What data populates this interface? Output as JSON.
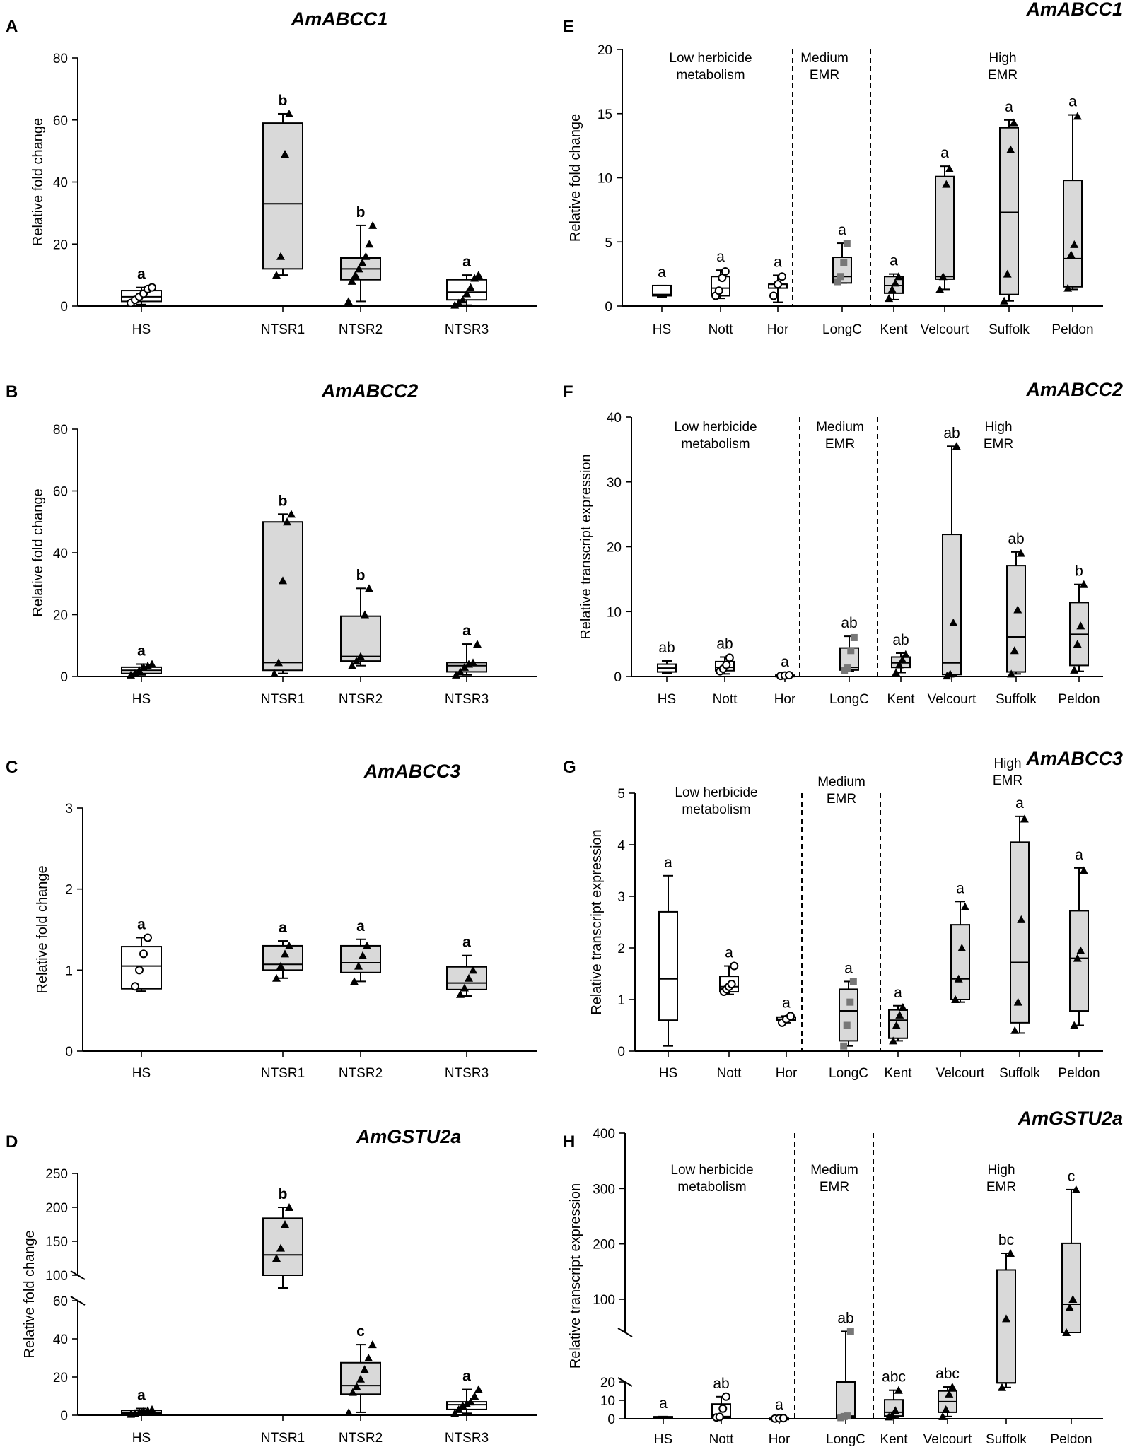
{
  "chart_data": [
    {
      "type": "box",
      "panel_letter": "A",
      "title": "AmABCC1",
      "ylabel": "Relative fold change",
      "ylim": [
        0,
        80
      ],
      "yticks": [
        "0",
        "20",
        "40",
        "60",
        "80"
      ],
      "categories": [
        "HS",
        "NTSR1",
        "NTSR2",
        "NTSR3"
      ],
      "boxes": [
        {
          "min": 0.5,
          "q1": 1.5,
          "median": 3,
          "q3": 5,
          "max": 6,
          "fill": "#ffffff",
          "marker": "circle",
          "points": [
            1,
            2,
            3,
            4,
            5.5,
            6
          ],
          "letter": "a"
        },
        {
          "min": 10,
          "q1": 12,
          "median": 33,
          "q3": 59,
          "max": 62,
          "fill": "#d9d9d9",
          "marker": "triangle",
          "points": [
            10,
            16,
            49,
            62
          ],
          "letter": "b"
        },
        {
          "min": 1.5,
          "q1": 8.5,
          "median": 12,
          "q3": 15.5,
          "max": 26,
          "fill": "#d9d9d9",
          "marker": "triangle",
          "points": [
            1.5,
            8,
            10,
            12,
            14,
            16,
            20,
            26
          ],
          "letter": "b"
        },
        {
          "min": 0.3,
          "q1": 2,
          "median": 4.5,
          "q3": 8.5,
          "max": 10,
          "fill": "#ffffff",
          "marker": "triangle",
          "points": [
            0.3,
            1,
            2,
            4,
            6,
            9,
            10
          ],
          "letter": "a"
        }
      ]
    },
    {
      "type": "box",
      "panel_letter": "B",
      "title": "AmABCC2",
      "ylabel": "Relative fold change",
      "ylim": [
        0,
        80
      ],
      "yticks": [
        "0",
        "20",
        "40",
        "60",
        "80"
      ],
      "categories": [
        "HS",
        "NTSR1",
        "NTSR2",
        "NTSR3"
      ],
      "boxes": [
        {
          "min": 0.5,
          "q1": 1,
          "median": 2,
          "q3": 3,
          "max": 4,
          "fill": "#ffffff",
          "marker": "triangle",
          "points": [
            0.5,
            1,
            2,
            3,
            3.5,
            4
          ],
          "letter": "a"
        },
        {
          "min": 1,
          "q1": 2,
          "median": 4.5,
          "q3": 50,
          "max": 52.5,
          "fill": "#d9d9d9",
          "marker": "triangle",
          "points": [
            1,
            4.5,
            31,
            50,
            52.5
          ],
          "letter": "b"
        },
        {
          "min": 3.5,
          "q1": 5,
          "median": 6.5,
          "q3": 19.5,
          "max": 28.5,
          "fill": "#d9d9d9",
          "marker": "triangle",
          "points": [
            3.5,
            5,
            6.5,
            20,
            28.5
          ],
          "letter": "b"
        },
        {
          "min": 0.5,
          "q1": 1.5,
          "median": 3.5,
          "q3": 4.5,
          "max": 10.5,
          "fill": "#d9d9d9",
          "marker": "triangle",
          "points": [
            0.5,
            1.5,
            3,
            4,
            4.5,
            10.5
          ],
          "letter": "a"
        }
      ]
    },
    {
      "type": "box",
      "panel_letter": "C",
      "title": "AmABCC3",
      "ylabel": "Relative fold change",
      "ylim": [
        0,
        3
      ],
      "yticks": [
        "0",
        "1",
        "2",
        "3"
      ],
      "categories": [
        "HS",
        "NTSR1",
        "NTSR2",
        "NTSR3"
      ],
      "boxes": [
        {
          "min": 0.74,
          "q1": 0.77,
          "median": 1.05,
          "q3": 1.29,
          "max": 1.4,
          "fill": "#ffffff",
          "marker": "circle",
          "points": [
            0.8,
            1.0,
            1.2,
            1.4
          ],
          "letter": "a"
        },
        {
          "min": 0.9,
          "q1": 1.0,
          "median": 1.07,
          "q3": 1.3,
          "max": 1.36,
          "fill": "#d9d9d9",
          "marker": "triangle",
          "points": [
            0.9,
            1.05,
            1.2,
            1.3
          ],
          "letter": "a"
        },
        {
          "min": 0.86,
          "q1": 0.97,
          "median": 1.09,
          "q3": 1.3,
          "max": 1.38,
          "fill": "#d9d9d9",
          "marker": "triangle",
          "points": [
            0.86,
            1.05,
            1.18,
            1.3
          ],
          "letter": "a"
        },
        {
          "min": 0.68,
          "q1": 0.76,
          "median": 0.84,
          "q3": 1.04,
          "max": 1.18,
          "fill": "#d9d9d9",
          "marker": "triangle",
          "points": [
            0.7,
            0.78,
            0.9,
            1.0
          ],
          "letter": "a"
        }
      ]
    },
    {
      "type": "box",
      "panel_letter": "D",
      "title": "AmGSTU2a",
      "ylabel": "Relative fold change",
      "axis_break": true,
      "lower_ylim": [
        0,
        60
      ],
      "lower_yticks": [
        "0",
        "20",
        "40",
        "60"
      ],
      "upper_ylim": [
        100,
        250
      ],
      "upper_yticks": [
        "100",
        "150",
        "200",
        "250"
      ],
      "categories": [
        "HS",
        "NTSR1",
        "NTSR2",
        "NTSR3"
      ],
      "boxes": [
        {
          "min": 0.5,
          "q1": 1,
          "median": 1.5,
          "q3": 2.5,
          "max": 3.5,
          "fill": "#ffffff",
          "marker": "triangle",
          "points": [
            0.5,
            1,
            1.5,
            2,
            2.5,
            3
          ],
          "letter": "a"
        },
        {
          "min": 90,
          "q1": 100,
          "median": 130,
          "q3": 184,
          "max": 200,
          "fill": "#d9d9d9",
          "marker": "triangle",
          "points": [
            125,
            140,
            175,
            200
          ],
          "letter": "b"
        },
        {
          "min": 1.5,
          "q1": 11,
          "median": 15.5,
          "q3": 27.5,
          "max": 37,
          "fill": "#d9d9d9",
          "marker": "triangle",
          "points": [
            1.5,
            12,
            15,
            19,
            24,
            30,
            37
          ],
          "letter": "c"
        },
        {
          "min": 1,
          "q1": 3,
          "median": 5.5,
          "q3": 7,
          "max": 13.5,
          "fill": "#ffffff",
          "marker": "triangle",
          "points": [
            1,
            3,
            5,
            6,
            7,
            10,
            13.5
          ],
          "letter": "a"
        }
      ]
    },
    {
      "type": "box",
      "panel_letter": "E",
      "title": "AmABCC1",
      "ylabel": "Relative fold change",
      "ylim": [
        0,
        20
      ],
      "yticks": [
        "0",
        "5",
        "10",
        "15",
        "20"
      ],
      "categories": [
        "HS",
        "Nott",
        "Hor",
        "LongC",
        "Kent",
        "Velcourt",
        "Suffolk",
        "Peldon"
      ],
      "groups": [
        "Low herbicide\nmetabolism",
        "Medium\nEMR",
        "High\nEMR"
      ],
      "boxes": [
        {
          "min": 0.7,
          "q1": 0.8,
          "median": 0.9,
          "q3": 1.6,
          "max": 1.6,
          "fill": "#ffffff",
          "marker": "none",
          "points": [],
          "letter": "a"
        },
        {
          "min": 0.6,
          "q1": 0.8,
          "median": 1.4,
          "q3": 2.3,
          "max": 2.8,
          "fill": "#ffffff",
          "marker": "circle",
          "points": [
            0.8,
            1.2,
            2.2,
            2.7
          ],
          "letter": "a"
        },
        {
          "min": 0.3,
          "q1": 1.4,
          "median": 1.7,
          "q3": 1.7,
          "max": 2.4,
          "fill": "#ffffff",
          "marker": "circle",
          "points": [
            0.8,
            1.7,
            2.3
          ],
          "letter": "a"
        },
        {
          "min": 1.8,
          "q1": 1.8,
          "median": 2.3,
          "q3": 3.8,
          "max": 4.9,
          "fill": "#d9d9d9",
          "marker": "square",
          "points": [
            1.9,
            2.3,
            3.4,
            4.9
          ],
          "letter": "a"
        },
        {
          "min": 0.5,
          "q1": 1.0,
          "median": 1.6,
          "q3": 2.3,
          "max": 2.5,
          "fill": "#d9d9d9",
          "marker": "triangle",
          "points": [
            0.6,
            1.3,
            1.8,
            2.3
          ],
          "letter": "a"
        },
        {
          "min": 1.3,
          "q1": 2.1,
          "median": 2.3,
          "q3": 10.1,
          "max": 10.9,
          "fill": "#d9d9d9",
          "marker": "triangle",
          "points": [
            1.3,
            2.3,
            9.5,
            10.7
          ],
          "letter": "a"
        },
        {
          "min": 0.4,
          "q1": 0.9,
          "median": 7.3,
          "q3": 13.9,
          "max": 14.5,
          "fill": "#d9d9d9",
          "marker": "triangle",
          "points": [
            0.4,
            2.5,
            12.2,
            14.3
          ],
          "letter": "a"
        },
        {
          "min": 1.3,
          "q1": 1.5,
          "median": 3.7,
          "q3": 9.8,
          "max": 14.9,
          "fill": "#d9d9d9",
          "marker": "triangle",
          "points": [
            1.4,
            4.0,
            4.8,
            14.8
          ],
          "letter": "a"
        }
      ]
    },
    {
      "type": "box",
      "panel_letter": "F",
      "title": "AmABCC2",
      "ylabel": "Relative transcript expression",
      "ylim": [
        0,
        40
      ],
      "yticks": [
        "0",
        "10",
        "20",
        "30",
        "40"
      ],
      "categories": [
        "HS",
        "Nott",
        "Hor",
        "LongC",
        "Kent",
        "Velcourt",
        "Suffolk",
        "Peldon"
      ],
      "groups": [
        "Low herbicide\nmetabolism",
        "Medium\nEMR",
        "High\nEMR"
      ],
      "boxes": [
        {
          "min": 0.5,
          "q1": 0.7,
          "median": 1.3,
          "q3": 1.9,
          "max": 2.4,
          "fill": "#ffffff",
          "marker": "none",
          "points": [],
          "letter": "ab"
        },
        {
          "min": 0.4,
          "q1": 0.9,
          "median": 1.4,
          "q3": 2.3,
          "max": 3.0,
          "fill": "#ffffff",
          "marker": "circle",
          "points": [
            0.8,
            1.2,
            1.8,
            2.9
          ],
          "letter": "ab"
        },
        {
          "min": 0.1,
          "q1": 0.1,
          "median": 0.1,
          "q3": 0.2,
          "max": 0.2,
          "fill": "#ffffff",
          "marker": "circle",
          "points": [
            0.1,
            0.15,
            0.2
          ],
          "letter": "a"
        },
        {
          "min": 0.8,
          "q1": 1.0,
          "median": 1.4,
          "q3": 4.4,
          "max": 6.2,
          "fill": "#d9d9d9",
          "marker": "square",
          "points": [
            0.9,
            1.3,
            4.0,
            6.0
          ],
          "letter": "ab"
        },
        {
          "min": 0.6,
          "q1": 1.4,
          "median": 2.1,
          "q3": 3.0,
          "max": 3.6,
          "fill": "#d9d9d9",
          "marker": "triangle",
          "points": [
            0.6,
            1.8,
            2.6,
            3.4
          ],
          "letter": "ab"
        },
        {
          "min": 0.1,
          "q1": 0.3,
          "median": 2.1,
          "q3": 21.9,
          "max": 35.5,
          "fill": "#d9d9d9",
          "marker": "triangle",
          "points": [
            0.1,
            0.4,
            8.3,
            35.5
          ],
          "letter": "ab"
        },
        {
          "min": 0.4,
          "q1": 0.7,
          "median": 6.1,
          "q3": 17.1,
          "max": 19.2,
          "fill": "#d9d9d9",
          "marker": "triangle",
          "points": [
            0.4,
            4.0,
            10.3,
            19.0
          ],
          "letter": "ab"
        },
        {
          "min": 0.8,
          "q1": 1.7,
          "median": 6.5,
          "q3": 11.4,
          "max": 14.2,
          "fill": "#d9d9d9",
          "marker": "triangle",
          "points": [
            1.0,
            5.0,
            7.8,
            14.2
          ],
          "letter": "b"
        }
      ]
    },
    {
      "type": "box",
      "panel_letter": "G",
      "title": "AmABCC3",
      "ylabel": "Relative transcript expression",
      "ylim": [
        0,
        5
      ],
      "yticks": [
        "0",
        "1",
        "2",
        "3",
        "4",
        "5"
      ],
      "categories": [
        "HS",
        "Nott",
        "Hor",
        "LongC",
        "Kent",
        "Velcourt",
        "Suffolk",
        "Peldon"
      ],
      "groups": [
        "Low herbicide\nmetabolism",
        "Medium\nEMR",
        "High\nEMR"
      ],
      "boxes": [
        {
          "min": 0.1,
          "q1": 0.6,
          "median": 1.4,
          "q3": 2.7,
          "max": 3.4,
          "fill": "#ffffff",
          "marker": "none",
          "points": [],
          "letter": "a"
        },
        {
          "min": 1.1,
          "q1": 1.15,
          "median": 1.25,
          "q3": 1.45,
          "max": 1.65,
          "fill": "#ffffff",
          "marker": "circle",
          "points": [
            1.15,
            1.2,
            1.25,
            1.3,
            1.65
          ],
          "letter": "a"
        },
        {
          "min": 0.55,
          "q1": 0.6,
          "median": 0.62,
          "q3": 0.66,
          "max": 0.68,
          "fill": "#ffffff",
          "marker": "circle",
          "points": [
            0.55,
            0.62,
            0.68
          ],
          "letter": "a"
        },
        {
          "min": 0.1,
          "q1": 0.2,
          "median": 0.78,
          "q3": 1.2,
          "max": 1.35,
          "fill": "#d9d9d9",
          "marker": "square",
          "points": [
            0.1,
            0.5,
            0.95,
            1.35
          ],
          "letter": "a"
        },
        {
          "min": 0.2,
          "q1": 0.25,
          "median": 0.6,
          "q3": 0.8,
          "max": 0.88,
          "fill": "#d9d9d9",
          "marker": "triangle",
          "points": [
            0.2,
            0.5,
            0.7,
            0.85
          ],
          "letter": "a"
        },
        {
          "min": 0.95,
          "q1": 1.0,
          "median": 1.4,
          "q3": 2.45,
          "max": 2.9,
          "fill": "#d9d9d9",
          "marker": "triangle",
          "points": [
            1.0,
            1.4,
            2.0,
            2.8
          ],
          "letter": "a"
        },
        {
          "min": 0.35,
          "q1": 0.55,
          "median": 1.72,
          "q3": 4.05,
          "max": 4.55,
          "fill": "#d9d9d9",
          "marker": "triangle",
          "points": [
            0.4,
            0.95,
            2.55,
            4.5
          ],
          "letter": "a"
        },
        {
          "min": 0.5,
          "q1": 0.78,
          "median": 1.8,
          "q3": 2.72,
          "max": 3.55,
          "fill": "#d9d9d9",
          "marker": "triangle",
          "points": [
            0.5,
            1.8,
            1.95,
            3.5
          ],
          "letter": "a"
        }
      ]
    },
    {
      "type": "box",
      "panel_letter": "H",
      "title": "AmGSTU2a",
      "ylabel": "Relative transcript expression",
      "axis_break": true,
      "lower_ylim": [
        0,
        20
      ],
      "lower_yticks": [
        "0",
        "10",
        "20"
      ],
      "upper_ylim": [
        40,
        400
      ],
      "upper_yticks": [
        "100",
        "200",
        "300",
        "400"
      ],
      "categories": [
        "HS",
        "Nott",
        "Hor",
        "LongC",
        "Kent",
        "Velcourt",
        "Suffolk",
        "Peldon"
      ],
      "groups": [
        "Low herbicide\nmetabolism",
        "Medium\nEMR",
        "High\nEMR"
      ],
      "boxes": [
        {
          "min": 0.8,
          "q1": 0.9,
          "median": 1.0,
          "q3": 1.1,
          "max": 1.2,
          "fill": "#ffffff",
          "marker": "none",
          "points": [],
          "letter": "a"
        },
        {
          "min": 0.5,
          "q1": 0.7,
          "median": 1.2,
          "q3": 8.0,
          "max": 12.0,
          "fill": "#ffffff",
          "marker": "circle",
          "points": [
            0.7,
            1.0,
            5.5,
            12.0
          ],
          "letter": "ab"
        },
        {
          "min": 0.1,
          "q1": 0.1,
          "median": 0.2,
          "q3": 0.3,
          "max": 0.3,
          "fill": "#ffffff",
          "marker": "circle",
          "points": [
            0.1,
            0.2,
            0.3
          ],
          "letter": "a"
        },
        {
          "min": 0.5,
          "q1": 0.7,
          "median": 1.5,
          "q3": 20,
          "max": 42,
          "fill": "#d9d9d9",
          "marker": "square",
          "points": [
            0.6,
            1.2,
            1.5,
            42
          ],
          "letter": "ab"
        },
        {
          "min": 0.8,
          "q1": 1.5,
          "median": 3.5,
          "q3": 10.3,
          "max": 15.5,
          "fill": "#d9d9d9",
          "marker": "triangle",
          "points": [
            1.0,
            2.0,
            4.5,
            15.5
          ],
          "letter": "abc"
        },
        {
          "min": 1.2,
          "q1": 3.5,
          "median": 9.3,
          "q3": 15.1,
          "max": 17.3,
          "fill": "#d9d9d9",
          "marker": "triangle",
          "points": [
            1.2,
            5.0,
            13.5,
            17.3
          ],
          "letter": "abc"
        },
        {
          "min": 17,
          "q1": 19.5,
          "median": 19.5,
          "q3": 153,
          "max": 183,
          "fill": "#d9d9d9",
          "marker": "triangle",
          "points": [
            17,
            65,
            183
          ],
          "letter": "bc"
        },
        {
          "min": 40,
          "q1": 40,
          "median": 91,
          "q3": 201,
          "max": 298,
          "fill": "#d9d9d9",
          "marker": "triangle",
          "points": [
            40,
            85,
            100,
            298
          ],
          "letter": "c"
        }
      ]
    }
  ]
}
